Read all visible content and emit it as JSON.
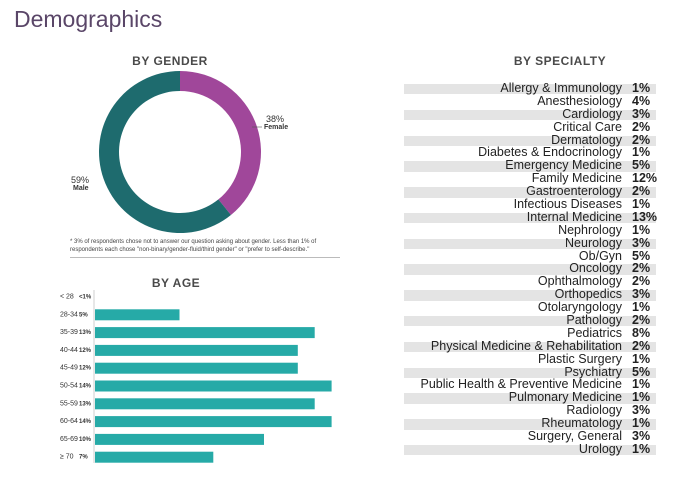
{
  "page": {
    "title": "Demographics"
  },
  "gender": {
    "heading": "BY GENDER",
    "footnote": "* 3% of respondents chose not to answer our question asking about gender. Less than 1% of respondents each chose \"non-binary/gender-fluid/third gender\" or \"prefer to self-describe.\"",
    "colors": {
      "female": "#a0479a",
      "male": "#1e6b6e"
    }
  },
  "age": {
    "heading": "BY AGE",
    "bar_color": "#26aaa7"
  },
  "specialty": {
    "heading": "BY SPECIALTY",
    "row_shading": "#e4e4e4"
  },
  "chart_data": [
    {
      "type": "pie",
      "variant": "donut",
      "labels": [
        "Female",
        "Male"
      ],
      "values": [
        38,
        59
      ],
      "value_labels": [
        "38%",
        "59%"
      ]
    },
    {
      "type": "bar",
      "orientation": "horizontal",
      "categories": [
        "< 28",
        "28-34",
        "35-39",
        "40-44",
        "45-49",
        "50-54",
        "55-59",
        "60-64",
        "65-69",
        "≥ 70"
      ],
      "values": [
        0.5,
        5,
        13,
        12,
        12,
        14,
        13,
        14,
        10,
        7
      ],
      "value_labels": [
        "<1%",
        "5%",
        "13%",
        "12%",
        "12%",
        "14%",
        "13%",
        "14%",
        "10%",
        "7%"
      ]
    },
    {
      "type": "table",
      "categories": [
        "Allergy & Immunology",
        "Anesthesiology",
        "Cardiology",
        "Critical Care",
        "Dermatology",
        "Diabetes & Endocrinology",
        "Emergency Medicine",
        "Family Medicine",
        "Gastroenterology",
        "Infectious Diseases",
        "Internal Medicine",
        "Nephrology",
        "Neurology",
        "Ob/Gyn",
        "Oncology",
        "Ophthalmology",
        "Orthopedics",
        "Otolaryngology",
        "Pathology",
        "Pediatrics",
        "Physical Medicine & Rehabilitation",
        "Plastic Surgery",
        "Psychiatry",
        "Public Health & Preventive Medicine",
        "Pulmonary Medicine",
        "Radiology",
        "Rheumatology",
        "Surgery, General",
        "Urology"
      ],
      "values": [
        1,
        4,
        3,
        2,
        2,
        1,
        5,
        12,
        2,
        1,
        13,
        1,
        3,
        5,
        2,
        2,
        3,
        1,
        2,
        8,
        2,
        1,
        5,
        1,
        1,
        3,
        1,
        3,
        1
      ],
      "value_labels": [
        "1%",
        "4%",
        "3%",
        "2%",
        "2%",
        "1%",
        "5%",
        "12%",
        "2%",
        "1%",
        "13%",
        "1%",
        "3%",
        "5%",
        "2%",
        "2%",
        "3%",
        "1%",
        "2%",
        "8%",
        "2%",
        "1%",
        "5%",
        "1%",
        "1%",
        "3%",
        "1%",
        "3%",
        "1%"
      ]
    }
  ]
}
